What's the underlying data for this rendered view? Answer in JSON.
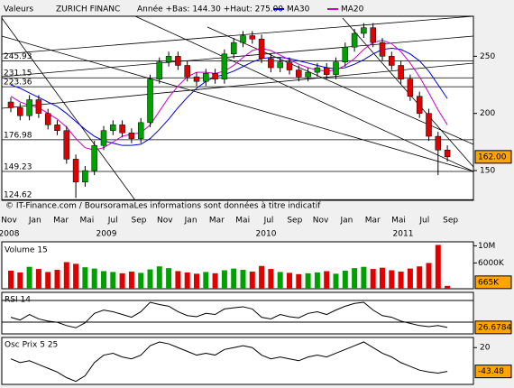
{
  "header": {
    "valeurs": "Valeurs",
    "name": "ZURICH FINANC",
    "range": "Année +Bas: 144.30 +Haut: 275.00",
    "copyright": "© IT-Finance.com / BoursoramaLes informations sont données à titre indicatif"
  },
  "x_labels": [
    "Nov",
    "Jan",
    "Mar",
    "Mai",
    "Jul",
    "Sep",
    "Nov",
    "Jan",
    "Mar",
    "Mai",
    "Jul",
    "Sep",
    "Nov",
    "Jan",
    "Mar",
    "Mai",
    "Jul",
    "Sep"
  ],
  "years": [
    "2008",
    "2009",
    "2010",
    "2011"
  ],
  "chart_data": [
    {
      "type": "candlestick",
      "up_color": "#00a000",
      "down_color": "#e00000",
      "open": [
        210,
        205,
        198,
        212,
        200,
        190,
        185,
        160,
        140,
        150,
        172,
        185,
        190,
        183,
        178,
        192,
        230,
        245,
        250,
        242,
        232,
        228,
        235,
        230,
        252,
        262,
        268,
        265,
        248,
        240,
        245,
        238,
        232,
        236,
        240,
        234,
        245,
        258,
        270,
        275,
        262,
        250,
        242,
        230,
        215,
        200,
        180,
        168
      ],
      "high": [
        214,
        209,
        216,
        216,
        204,
        194,
        189,
        164,
        154,
        176,
        189,
        194,
        194,
        187,
        196,
        234,
        249,
        254,
        254,
        246,
        236,
        239,
        239,
        256,
        266,
        272,
        272,
        269,
        252,
        249,
        249,
        242,
        240,
        244,
        244,
        249,
        262,
        274,
        279,
        279,
        266,
        254,
        246,
        234,
        219,
        204,
        184,
        172
      ],
      "low": [
        201,
        194,
        194,
        196,
        186,
        181,
        156,
        126,
        136,
        146,
        168,
        181,
        179,
        174,
        174,
        188,
        226,
        241,
        238,
        228,
        224,
        224,
        226,
        226,
        248,
        258,
        261,
        244,
        236,
        236,
        234,
        228,
        228,
        232,
        230,
        230,
        241,
        254,
        266,
        258,
        246,
        238,
        226,
        211,
        196,
        176,
        146,
        158
      ],
      "close": [
        205,
        198,
        212,
        200,
        190,
        185,
        160,
        140,
        150,
        172,
        185,
        190,
        183,
        178,
        192,
        230,
        245,
        250,
        242,
        232,
        228,
        235,
        230,
        252,
        262,
        268,
        265,
        248,
        240,
        245,
        238,
        232,
        236,
        240,
        234,
        245,
        258,
        270,
        275,
        262,
        250,
        242,
        230,
        215,
        200,
        180,
        168,
        162
      ],
      "series": [
        {
          "name": "MA30",
          "color": "#0000dd",
          "values": [
            225,
            222,
            218,
            214,
            210,
            206,
            200,
            193,
            186,
            180,
            176,
            174,
            172,
            172,
            173,
            178,
            186,
            195,
            205,
            214,
            222,
            228,
            232,
            234,
            237,
            241,
            245,
            248,
            249,
            249,
            248,
            246,
            244,
            242,
            240,
            239,
            240,
            243,
            247,
            252,
            256,
            257,
            256,
            252,
            246,
            237,
            225,
            213
          ]
        },
        {
          "name": "MA20",
          "color": "#cc00cc",
          "values": [
            215,
            210,
            207,
            205,
            200,
            195,
            188,
            178,
            170,
            168,
            170,
            175,
            180,
            182,
            183,
            190,
            202,
            214,
            224,
            232,
            236,
            236,
            235,
            237,
            242,
            249,
            255,
            257,
            255,
            251,
            247,
            243,
            240,
            238,
            237,
            238,
            242,
            248,
            256,
            262,
            264,
            261,
            254,
            244,
            232,
            218,
            203,
            190
          ]
        }
      ],
      "levels": [
        245.93,
        231.15,
        223.36,
        176.98,
        149.23,
        124.62
      ],
      "ylim": [
        124,
        285
      ],
      "yticks": [
        150,
        200,
        250
      ],
      "last": {
        "value": 162,
        "label": "162.00"
      }
    },
    {
      "type": "bar",
      "title": "Volume 15",
      "values": [
        4200000,
        3800000,
        5100000,
        4600000,
        3900000,
        4400000,
        6200000,
        5800000,
        5000000,
        4700000,
        4100000,
        3900000,
        3600000,
        4000000,
        3700000,
        4500000,
        5200000,
        4800000,
        4100000,
        3800000,
        3500000,
        3900000,
        3600000,
        4300000,
        4700000,
        4400000,
        4000000,
        5300000,
        4600000,
        3900000,
        3700000,
        3400000,
        3600000,
        3800000,
        4100000,
        3500000,
        4200000,
        4800000,
        5100000,
        4600000,
        4900000,
        4300000,
        4000000,
        4700000,
        5200000,
        6000000,
        10200000,
        665000
      ],
      "ylim": [
        0,
        10500000
      ],
      "yticks": [
        {
          "value": 10000000,
          "label": "10M"
        },
        {
          "value": 6000000,
          "label": "6000K"
        }
      ],
      "last": {
        "value": 665000,
        "label": "665K"
      }
    },
    {
      "type": "line",
      "title": "RSI 14",
      "color": "#000000",
      "values": [
        45,
        40,
        50,
        42,
        38,
        36,
        30,
        26,
        35,
        52,
        58,
        55,
        50,
        45,
        55,
        72,
        68,
        65,
        55,
        48,
        46,
        52,
        50,
        60,
        62,
        64,
        60,
        45,
        42,
        50,
        46,
        44,
        52,
        55,
        50,
        58,
        65,
        70,
        72,
        58,
        48,
        45,
        38,
        34,
        30,
        28,
        30,
        26.6784
      ],
      "ylim": [
        15,
        90
      ],
      "last": {
        "value": 26.6784
      }
    },
    {
      "type": "line",
      "title": "Osc Prix 5 25",
      "color": "#000000",
      "values": [
        -10,
        -20,
        -15,
        -25,
        -35,
        -45,
        -60,
        -70,
        -55,
        -20,
        0,
        5,
        -5,
        -10,
        0,
        25,
        35,
        30,
        20,
        10,
        0,
        5,
        0,
        15,
        20,
        25,
        20,
        0,
        -10,
        -5,
        -10,
        -15,
        -5,
        0,
        -5,
        5,
        15,
        25,
        35,
        20,
        5,
        -5,
        -20,
        -30,
        -40,
        -45,
        -48,
        -43.48
      ],
      "ylim": [
        -78,
        47
      ],
      "yticks": [
        20
      ],
      "last": {
        "value": -43.48
      }
    }
  ]
}
